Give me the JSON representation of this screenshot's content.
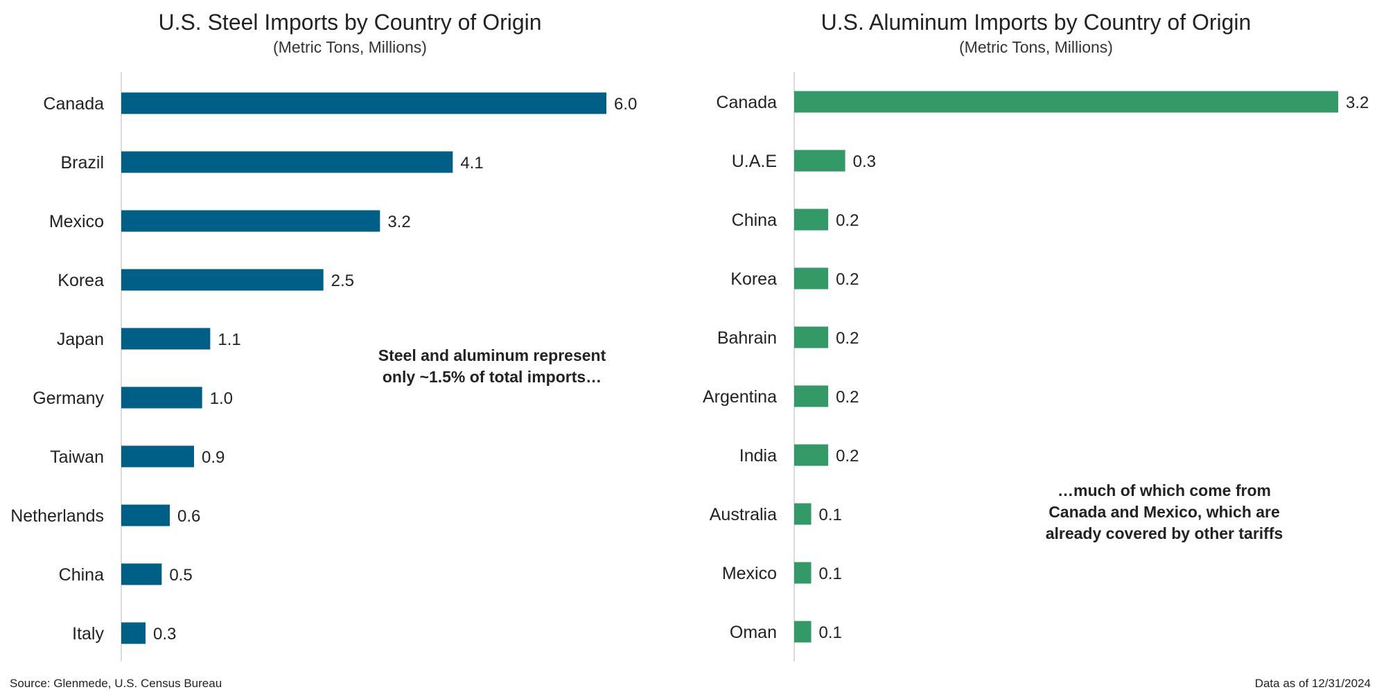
{
  "charts": [
    {
      "type": "bar",
      "orientation": "horizontal",
      "title": "U.S. Steel Imports by Country of Origin",
      "subtitle": "(Metric Tons, Millions)",
      "categories": [
        "Canada",
        "Brazil",
        "Mexico",
        "Korea",
        "Japan",
        "Germany",
        "Taiwan",
        "Netherlands",
        "China",
        "Italy"
      ],
      "values": [
        6.0,
        4.1,
        3.2,
        2.5,
        1.1,
        1.0,
        0.9,
        0.6,
        0.5,
        0.3
      ],
      "value_labels": [
        "6.0",
        "4.1",
        "3.2",
        "2.5",
        "1.1",
        "1.0",
        "0.9",
        "0.6",
        "0.5",
        "0.3"
      ],
      "color": "#005f86",
      "annotation": "Steel and aluminum represent\nonly ~1.5% of total imports…"
    },
    {
      "type": "bar",
      "orientation": "horizontal",
      "title": "U.S. Aluminum Imports by Country of Origin",
      "subtitle": "(Metric Tons, Millions)",
      "categories": [
        "Canada",
        "U.A.E",
        "China",
        "Korea",
        "Bahrain",
        "Argentina",
        "India",
        "Australia",
        "Mexico",
        "Oman"
      ],
      "values": [
        3.2,
        0.3,
        0.2,
        0.2,
        0.2,
        0.2,
        0.2,
        0.1,
        0.1,
        0.1
      ],
      "value_labels": [
        "3.2",
        "0.3",
        "0.2",
        "0.2",
        "0.2",
        "0.2",
        "0.2",
        "0.1",
        "0.1",
        "0.1"
      ],
      "color": "#339966",
      "annotation": "…much of which come from\nCanada and Mexico, which are\nalready covered by other tariffs"
    }
  ],
  "footer": {
    "source": "Source: Glenmede, U.S. Census Bureau",
    "as_of": "Data as of 12/31/2024"
  }
}
